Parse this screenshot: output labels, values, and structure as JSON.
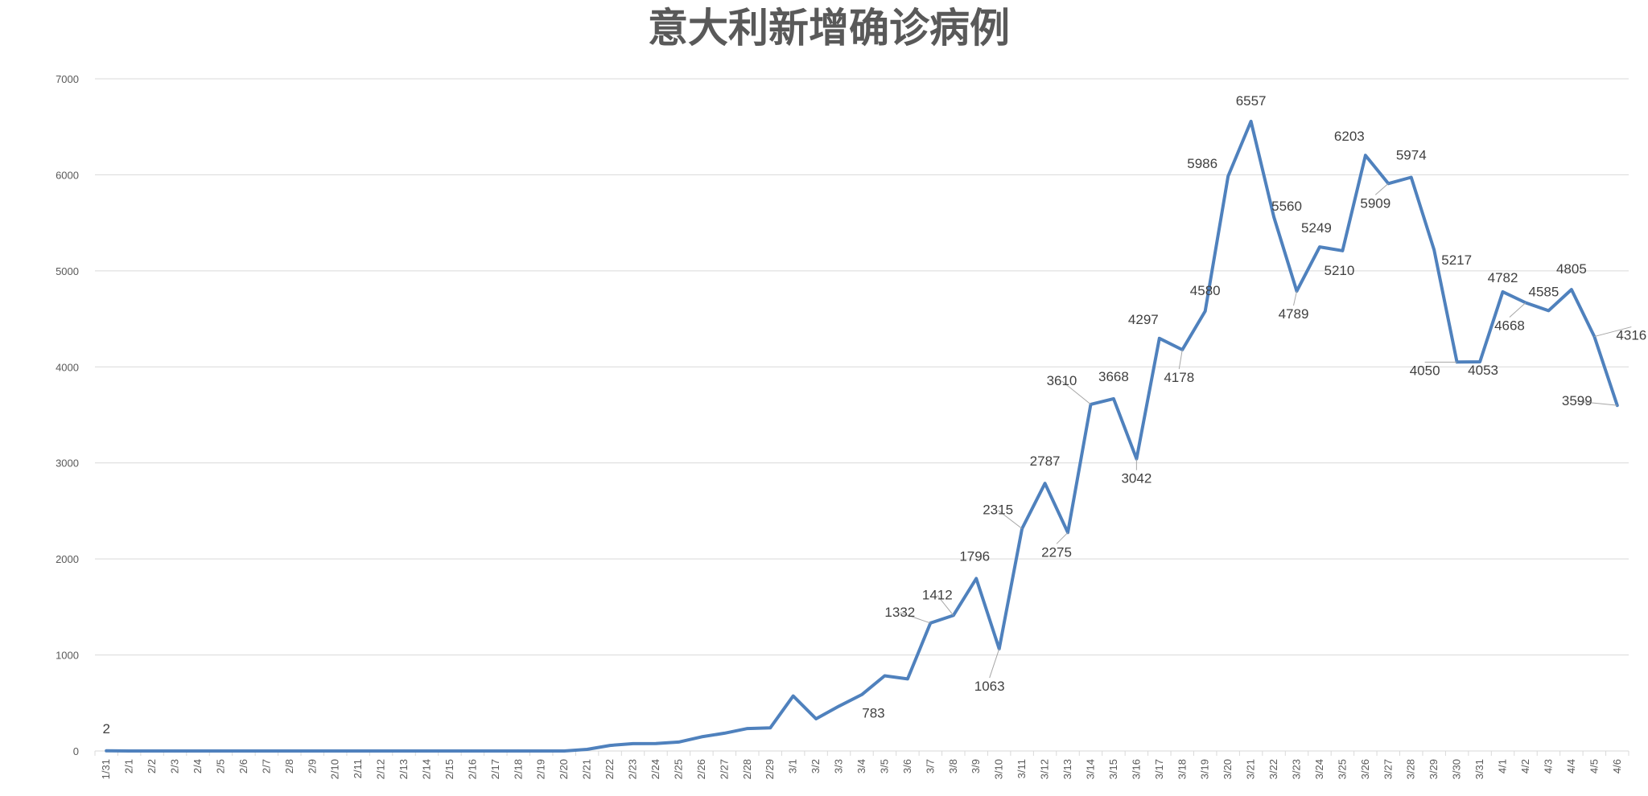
{
  "chart_data": {
    "type": "line",
    "title": "意大利新增确诊病例",
    "xlabel": "",
    "ylabel": "",
    "ylim": [
      0,
      7000
    ],
    "yticks": [
      0,
      1000,
      2000,
      3000,
      4000,
      5000,
      6000,
      7000
    ],
    "grid": true,
    "legend": "none",
    "line_color": "#4f81bd",
    "categories": [
      "1/31",
      "2/1",
      "2/2",
      "2/3",
      "2/4",
      "2/5",
      "2/6",
      "2/7",
      "2/8",
      "2/9",
      "2/10",
      "2/11",
      "2/12",
      "2/13",
      "2/14",
      "2/15",
      "2/16",
      "2/17",
      "2/18",
      "2/19",
      "2/20",
      "2/21",
      "2/22",
      "2/23",
      "2/24",
      "2/25",
      "2/26",
      "2/27",
      "2/28",
      "2/29",
      "3/1",
      "3/2",
      "3/3",
      "3/4",
      "3/5",
      "3/6",
      "3/7",
      "3/8",
      "3/9",
      "3/10",
      "3/11",
      "3/12",
      "3/13",
      "3/14",
      "3/15",
      "3/16",
      "3/17",
      "3/18",
      "3/19",
      "3/20",
      "3/21",
      "3/22",
      "3/23",
      "3/24",
      "3/25",
      "3/26",
      "3/27",
      "3/28",
      "3/29",
      "3/30",
      "3/31",
      "4/1",
      "4/2",
      "4/3",
      "4/4",
      "4/5",
      "4/6"
    ],
    "series": [
      {
        "values": [
          2,
          0,
          0,
          0,
          0,
          0,
          0,
          0,
          0,
          0,
          0,
          0,
          0,
          0,
          0,
          0,
          0,
          0,
          0,
          0,
          0,
          17,
          58,
          76,
          78,
          93,
          147,
          185,
          234,
          240,
          573,
          335,
          466,
          587,
          783,
          750,
          1332,
          1412,
          1796,
          1063,
          2315,
          2787,
          2275,
          3610,
          3668,
          3042,
          4297,
          4178,
          4580,
          5986,
          6557,
          5560,
          4789,
          5249,
          5210,
          6203,
          5909,
          5974,
          5217,
          4050,
          4053,
          4782,
          4668,
          4585,
          4805,
          4316,
          3599
        ],
        "labels": [
          {
            "category": "1/31",
            "text": "2"
          },
          {
            "category": "3/5",
            "text": "783"
          },
          {
            "category": "3/7",
            "text": "1332"
          },
          {
            "category": "3/8",
            "text": "1412"
          },
          {
            "category": "3/9",
            "text": "1796"
          },
          {
            "category": "3/10",
            "text": "1063"
          },
          {
            "category": "3/11",
            "text": "2315"
          },
          {
            "category": "3/12",
            "text": "2787"
          },
          {
            "category": "3/13",
            "text": "2275"
          },
          {
            "category": "3/14",
            "text": "3610"
          },
          {
            "category": "3/15",
            "text": "3668"
          },
          {
            "category": "3/16",
            "text": "3042"
          },
          {
            "category": "3/17",
            "text": "4297"
          },
          {
            "category": "3/18",
            "text": "4178"
          },
          {
            "category": "3/19",
            "text": "4580"
          },
          {
            "category": "3/20",
            "text": "5986"
          },
          {
            "category": "3/21",
            "text": "6557"
          },
          {
            "category": "3/22",
            "text": "5560"
          },
          {
            "category": "3/23",
            "text": "4789"
          },
          {
            "category": "3/24",
            "text": "5249"
          },
          {
            "category": "3/25",
            "text": "5210"
          },
          {
            "category": "3/26",
            "text": "6203"
          },
          {
            "category": "3/27",
            "text": "5909"
          },
          {
            "category": "3/28",
            "text": "5974"
          },
          {
            "category": "3/29",
            "text": "5217"
          },
          {
            "category": "3/30",
            "text": "4050"
          },
          {
            "category": "3/31",
            "text": "4053"
          },
          {
            "category": "4/1",
            "text": "4782"
          },
          {
            "category": "4/2",
            "text": "4668"
          },
          {
            "category": "4/3",
            "text": "4585"
          },
          {
            "category": "4/4",
            "text": "4805"
          },
          {
            "category": "4/5",
            "text": "4316"
          },
          {
            "category": "4/6",
            "text": "3599"
          }
        ]
      }
    ]
  }
}
